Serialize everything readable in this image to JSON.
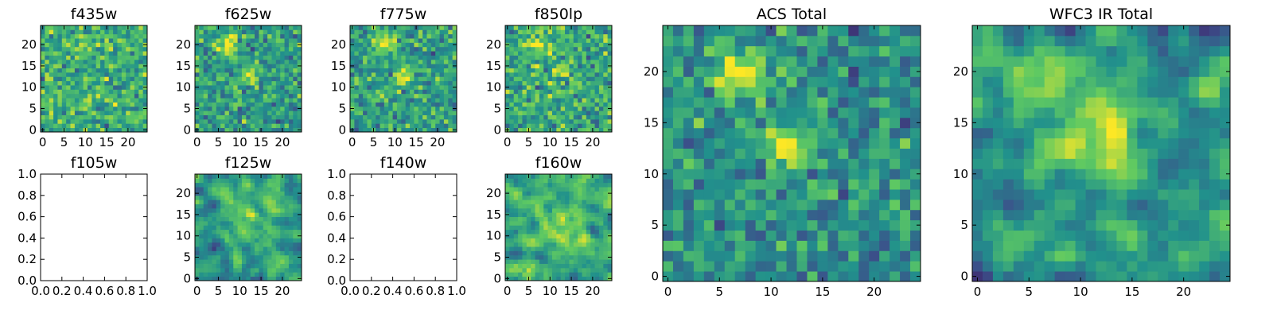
{
  "figure": {
    "colormap": "viridis",
    "colormap_stops": [
      "#440154",
      "#3b528b",
      "#21918c",
      "#5ec962",
      "#fde725"
    ]
  },
  "chart_data": [
    {
      "type": "heatmap",
      "title": "f435w",
      "grid_size": 25,
      "seed": 11,
      "xlim": [
        -0.5,
        24.5
      ],
      "ylim": [
        -0.5,
        24.5
      ],
      "xticks": [
        0,
        5,
        10,
        15,
        20
      ],
      "yticks": [
        0,
        5,
        10,
        15,
        20
      ],
      "xtick_labels": [
        "0",
        "5",
        "10",
        "15",
        "20"
      ],
      "ytick_labels": [
        "0",
        "5",
        "10",
        "15",
        "20"
      ],
      "mean": 0.62,
      "noise": 0.42,
      "smooth": 0,
      "blobs": [
        {
          "x": 8,
          "y": 20,
          "amp": 0.15,
          "sigma": 2
        }
      ]
    },
    {
      "type": "heatmap",
      "title": "f625w",
      "grid_size": 25,
      "seed": 23,
      "xlim": [
        -0.5,
        24.5
      ],
      "ylim": [
        -0.5,
        24.5
      ],
      "xticks": [
        0,
        5,
        10,
        15,
        20
      ],
      "yticks": [
        0,
        5,
        10,
        15,
        20
      ],
      "xtick_labels": [
        "0",
        "5",
        "10",
        "15",
        "20"
      ],
      "ytick_labels": [
        "0",
        "5",
        "10",
        "15",
        "20"
      ],
      "mean": 0.55,
      "noise": 0.4,
      "smooth": 0,
      "blobs": [
        {
          "x": 7,
          "y": 20,
          "amp": 0.35,
          "sigma": 2
        },
        {
          "x": 12,
          "y": 13,
          "amp": 0.3,
          "sigma": 1.5
        }
      ]
    },
    {
      "type": "heatmap",
      "title": "f775w",
      "grid_size": 25,
      "seed": 37,
      "xlim": [
        -0.5,
        24.5
      ],
      "ylim": [
        -0.5,
        24.5
      ],
      "xticks": [
        0,
        5,
        10,
        15,
        20
      ],
      "yticks": [
        0,
        5,
        10,
        15,
        20
      ],
      "xtick_labels": [
        "0",
        "5",
        "10",
        "15",
        "20"
      ],
      "ytick_labels": [
        "0",
        "5",
        "10",
        "15",
        "20"
      ],
      "mean": 0.56,
      "noise": 0.4,
      "smooth": 0,
      "blobs": [
        {
          "x": 7,
          "y": 20,
          "amp": 0.35,
          "sigma": 2
        },
        {
          "x": 12,
          "y": 13,
          "amp": 0.35,
          "sigma": 1.5
        }
      ]
    },
    {
      "type": "heatmap",
      "title": "f850lp",
      "grid_size": 25,
      "seed": 41,
      "xlim": [
        -0.5,
        24.5
      ],
      "ylim": [
        -0.5,
        24.5
      ],
      "xticks": [
        0,
        5,
        10,
        15,
        20
      ],
      "yticks": [
        0,
        5,
        10,
        15,
        20
      ],
      "xtick_labels": [
        "0",
        "5",
        "10",
        "15",
        "20"
      ],
      "ytick_labels": [
        "0",
        "5",
        "10",
        "15",
        "20"
      ],
      "mean": 0.6,
      "noise": 0.42,
      "smooth": 0,
      "blobs": [
        {
          "x": 7,
          "y": 20,
          "amp": 0.2,
          "sigma": 2
        },
        {
          "x": 12,
          "y": 13,
          "amp": 0.2,
          "sigma": 1.5
        }
      ]
    },
    {
      "type": "heatmap",
      "title": "f105w",
      "empty": true,
      "xlim": [
        0,
        1
      ],
      "ylim": [
        0,
        1
      ],
      "xticks": [
        0,
        0.2,
        0.4,
        0.6,
        0.8,
        1.0
      ],
      "yticks": [
        0,
        0.2,
        0.4,
        0.6,
        0.8,
        1.0
      ],
      "xtick_labels": [
        "0.0",
        "0.2",
        "0.4",
        "0.6",
        "0.8",
        "1.0"
      ],
      "ytick_labels": [
        "0.0",
        "0.2",
        "0.4",
        "0.6",
        "0.8",
        "1.0"
      ]
    },
    {
      "type": "heatmap",
      "title": "f125w",
      "grid_size": 25,
      "seed": 53,
      "xlim": [
        -0.5,
        24.5
      ],
      "ylim": [
        -0.5,
        24.5
      ],
      "xticks": [
        0,
        5,
        10,
        15,
        20
      ],
      "yticks": [
        0,
        5,
        10,
        15,
        20
      ],
      "xtick_labels": [
        "0",
        "5",
        "10",
        "15",
        "20"
      ],
      "ytick_labels": [
        "0",
        "5",
        "10",
        "15",
        "20"
      ],
      "mean": 0.55,
      "noise": 0.5,
      "smooth": 1,
      "blobs": [
        {
          "x": 12,
          "y": 13,
          "amp": 0.3,
          "sigma": 2.5
        },
        {
          "x": 7,
          "y": 19,
          "amp": 0.2,
          "sigma": 2
        }
      ]
    },
    {
      "type": "heatmap",
      "title": "f140w",
      "empty": true,
      "xlim": [
        0,
        1
      ],
      "ylim": [
        0,
        1
      ],
      "xticks": [
        0,
        0.2,
        0.4,
        0.6,
        0.8,
        1.0
      ],
      "yticks": [
        0,
        0.2,
        0.4,
        0.6,
        0.8,
        1.0
      ],
      "xtick_labels": [
        "0.0",
        "0.2",
        "0.4",
        "0.6",
        "0.8",
        "1.0"
      ],
      "ytick_labels": [
        "0.0",
        "0.2",
        "0.4",
        "0.6",
        "0.8",
        "1.0"
      ]
    },
    {
      "type": "heatmap",
      "title": "f160w",
      "grid_size": 25,
      "seed": 67,
      "xlim": [
        -0.5,
        24.5
      ],
      "ylim": [
        -0.5,
        24.5
      ],
      "xticks": [
        0,
        5,
        10,
        15,
        20
      ],
      "yticks": [
        0,
        5,
        10,
        15,
        20
      ],
      "xtick_labels": [
        "0",
        "5",
        "10",
        "15",
        "20"
      ],
      "ytick_labels": [
        "0",
        "5",
        "10",
        "15",
        "20"
      ],
      "mean": 0.62,
      "noise": 0.5,
      "smooth": 1,
      "blobs": [
        {
          "x": 12,
          "y": 13,
          "amp": 0.3,
          "sigma": 3
        },
        {
          "x": 5,
          "y": 17,
          "amp": 0.2,
          "sigma": 2
        }
      ]
    },
    {
      "type": "heatmap",
      "title": "ACS Total",
      "grid_size": 25,
      "seed": 79,
      "xlim": [
        -0.5,
        24.5
      ],
      "ylim": [
        -0.5,
        24.5
      ],
      "xticks": [
        0,
        5,
        10,
        15,
        20
      ],
      "yticks": [
        0,
        5,
        10,
        15,
        20
      ],
      "xtick_labels": [
        "0",
        "5",
        "10",
        "15",
        "20"
      ],
      "ytick_labels": [
        "0",
        "5",
        "10",
        "15",
        "20"
      ],
      "mean": 0.5,
      "noise": 0.38,
      "smooth": 0,
      "blobs": [
        {
          "x": 7,
          "y": 20,
          "amp": 0.5,
          "sigma": 1.6
        },
        {
          "x": 11.5,
          "y": 12.5,
          "amp": 0.5,
          "sigma": 1.4
        }
      ]
    },
    {
      "type": "heatmap",
      "title": "WFC3 IR Total",
      "grid_size": 25,
      "seed": 97,
      "xlim": [
        -0.5,
        24.5
      ],
      "ylim": [
        -0.5,
        24.5
      ],
      "xticks": [
        0,
        5,
        10,
        15,
        20
      ],
      "yticks": [
        0,
        5,
        10,
        15,
        20
      ],
      "xtick_labels": [
        "0",
        "5",
        "10",
        "15",
        "20"
      ],
      "ytick_labels": [
        "0",
        "5",
        "10",
        "15",
        "20"
      ],
      "mean": 0.5,
      "noise": 0.5,
      "smooth": 1,
      "blobs": [
        {
          "x": 12,
          "y": 13,
          "amp": 0.45,
          "sigma": 2.5
        },
        {
          "x": 6,
          "y": 19,
          "amp": 0.3,
          "sigma": 2
        },
        {
          "x": 23,
          "y": 18,
          "amp": 0.35,
          "sigma": 1.2
        }
      ]
    }
  ]
}
